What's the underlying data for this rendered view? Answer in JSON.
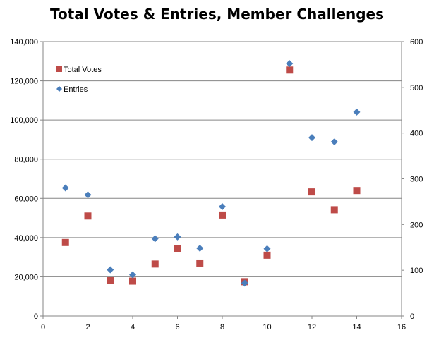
{
  "chart_data": {
    "type": "scatter",
    "title": "Total Votes & Entries, Member Challenges",
    "xlabel": "",
    "ylabel": "",
    "y2label": "",
    "xlim": [
      0,
      16
    ],
    "ylim": [
      0,
      140000
    ],
    "y2lim": [
      0,
      600
    ],
    "x_ticks": [
      0,
      2,
      4,
      6,
      8,
      10,
      12,
      14,
      16
    ],
    "x_tick_labels": [
      "0",
      "2",
      "4",
      "6",
      "8",
      "10",
      "12",
      "14",
      "16"
    ],
    "y_ticks": [
      0,
      20000,
      40000,
      60000,
      80000,
      100000,
      120000,
      140000
    ],
    "y_tick_labels": [
      "0",
      "20,000",
      "40,000",
      "60,000",
      "80,000",
      "100,000",
      "120,000",
      "140,000"
    ],
    "y2_ticks": [
      0,
      100,
      200,
      300,
      400,
      500,
      600
    ],
    "y2_tick_labels": [
      "0",
      "100",
      "200",
      "300",
      "400",
      "500",
      "600"
    ],
    "grid": "horizontal",
    "legend_position": "top-left-inside",
    "series": [
      {
        "name": "Total Votes",
        "axis": "left",
        "marker": "square",
        "color": "#BE4B48",
        "x": [
          1,
          2,
          3,
          4,
          5,
          6,
          7,
          8,
          9,
          10,
          11,
          12,
          13,
          14
        ],
        "y": [
          37500,
          51000,
          18000,
          17800,
          26500,
          34500,
          27000,
          51500,
          17500,
          31000,
          125500,
          63300,
          54200,
          64000
        ]
      },
      {
        "name": "Entries",
        "axis": "right",
        "marker": "diamond",
        "color": "#4A7EBB",
        "x": [
          1,
          2,
          3,
          4,
          5,
          6,
          7,
          8,
          9,
          10,
          11,
          12,
          13,
          14
        ],
        "y": [
          280,
          265,
          101,
          90,
          169,
          173,
          148,
          239,
          72,
          147,
          552,
          390,
          381,
          446
        ]
      }
    ]
  }
}
